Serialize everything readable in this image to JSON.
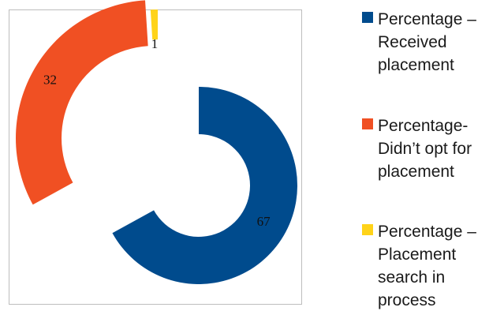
{
  "chart_data": {
    "type": "pie",
    "style": "exploded-donut",
    "title": "",
    "legend_position": "right",
    "slices": [
      {
        "label": "Percentage – Received placement",
        "value": 67,
        "color": "#004b8d"
      },
      {
        "label": "Percentage- Didn’t opt for placement",
        "value": 32,
        "color": "#f05023"
      },
      {
        "label": "Percentage – Placement search in process",
        "value": 1,
        "color": "#ffd319"
      }
    ],
    "legend_entries": [
      {
        "lines": "Percentage –\nReceived\nplacement",
        "color": "#004b8d"
      },
      {
        "lines": "Percentage-\nDidn’t opt for\nplacement",
        "color": "#f05023"
      },
      {
        "lines": "Percentage –\nPlacement\nsearch in\nprocess",
        "color": "#ffd319"
      }
    ],
    "data_labels": [
      "67",
      "32",
      "1"
    ]
  }
}
